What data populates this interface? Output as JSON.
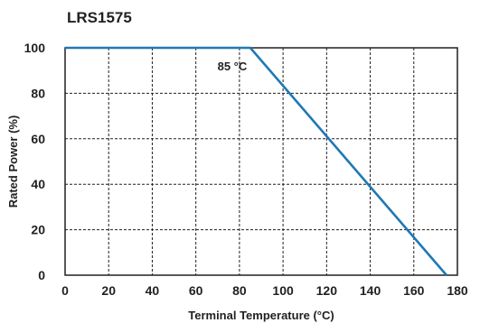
{
  "chart_data": {
    "type": "line",
    "title": "LRS1575",
    "xlabel": "Terminal Temperature (°C)",
    "ylabel": "Rated Power (%)",
    "xlim": [
      0,
      180
    ],
    "ylim": [
      0,
      100
    ],
    "x_ticks": [
      "0",
      "20",
      "40",
      "60",
      "80",
      "100",
      "120",
      "140",
      "160",
      "180"
    ],
    "y_ticks": [
      "0",
      "20",
      "40",
      "60",
      "80",
      "100"
    ],
    "grid": true,
    "series": [
      {
        "x": [
          0,
          85,
          175
        ],
        "y": [
          100,
          100,
          0
        ],
        "color": "#1f78b4"
      }
    ],
    "annotations": [
      {
        "text": "85 °C",
        "x": 85,
        "y": 100
      }
    ]
  }
}
